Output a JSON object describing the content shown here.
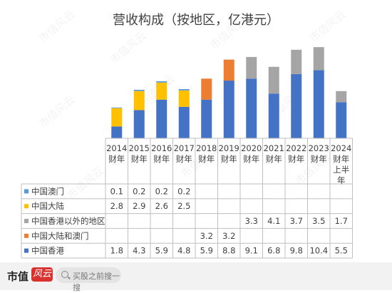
{
  "chart_data": {
    "type": "bar",
    "stacked": true,
    "title": "营收构成（按地区，亿港元）",
    "categories": [
      [
        "2014",
        "财年"
      ],
      [
        "2015",
        "财年"
      ],
      [
        "2016",
        "财年"
      ],
      [
        "2017",
        "财年"
      ],
      [
        "2018",
        "财年"
      ],
      [
        "2019",
        "财年"
      ],
      [
        "2020",
        "财年"
      ],
      [
        "2021",
        "财年"
      ],
      [
        "2022",
        "财年"
      ],
      [
        "2023",
        "财年"
      ],
      [
        "2024",
        "财年",
        "上半",
        "年"
      ]
    ],
    "series": [
      {
        "name": "中国澳门",
        "color": "#5b9bd5",
        "values": [
          0.1,
          0.2,
          0.2,
          0.2,
          null,
          null,
          null,
          null,
          null,
          null,
          null
        ],
        "labels": [
          "0.1",
          "0.2",
          "0.2",
          "0.2",
          "",
          "",
          "",
          "",
          "",
          "",
          ""
        ]
      },
      {
        "name": "中国大陆",
        "color": "#ffc000",
        "values": [
          2.8,
          2.9,
          2.6,
          2.5,
          null,
          null,
          null,
          null,
          null,
          null,
          null
        ],
        "labels": [
          "2.8",
          "2.9",
          "2.6",
          "2.5",
          "",
          "",
          "",
          "",
          "",
          "",
          ""
        ]
      },
      {
        "name": "中国香港以外的地区",
        "color": "#a5a5a5",
        "values": [
          null,
          null,
          null,
          null,
          null,
          null,
          3.3,
          4.1,
          3.7,
          3.5,
          1.7
        ],
        "labels": [
          "",
          "",
          "",
          "",
          "",
          "",
          "3.3",
          "4.1",
          "3.7",
          "3.5",
          "1.7"
        ]
      },
      {
        "name": "中国大陆和澳门",
        "color": "#ed7d31",
        "values": [
          null,
          null,
          null,
          null,
          3.2,
          3.2,
          null,
          null,
          null,
          null,
          null
        ],
        "labels": [
          "",
          "",
          "",
          "",
          "3.2",
          "3.2",
          "",
          "",
          "",
          "",
          ""
        ]
      },
      {
        "name": "中国香港",
        "color": "#4472c4",
        "values": [
          1.8,
          4.3,
          5.9,
          4.8,
          5.9,
          8.8,
          9.1,
          6.8,
          9.8,
          10.4,
          5.5
        ],
        "labels": [
          "1.8",
          "4.3",
          "5.9",
          "4.8",
          "5.9",
          "8.8",
          "9.1",
          "6.8",
          "9.8",
          "10.4",
          "5.5"
        ]
      }
    ],
    "stack_order": [
      "中国香港",
      "中国大陆和澳门",
      "中国香港以外的地区",
      "中国大陆",
      "中国澳门"
    ],
    "ylim": [
      0,
      14
    ],
    "grid": false,
    "legend": "data-table"
  },
  "watermark": "市值风云",
  "footer": {
    "brand": "市值",
    "brand_badge": "风云",
    "search_placeholder": "买股之前搜一搜"
  }
}
